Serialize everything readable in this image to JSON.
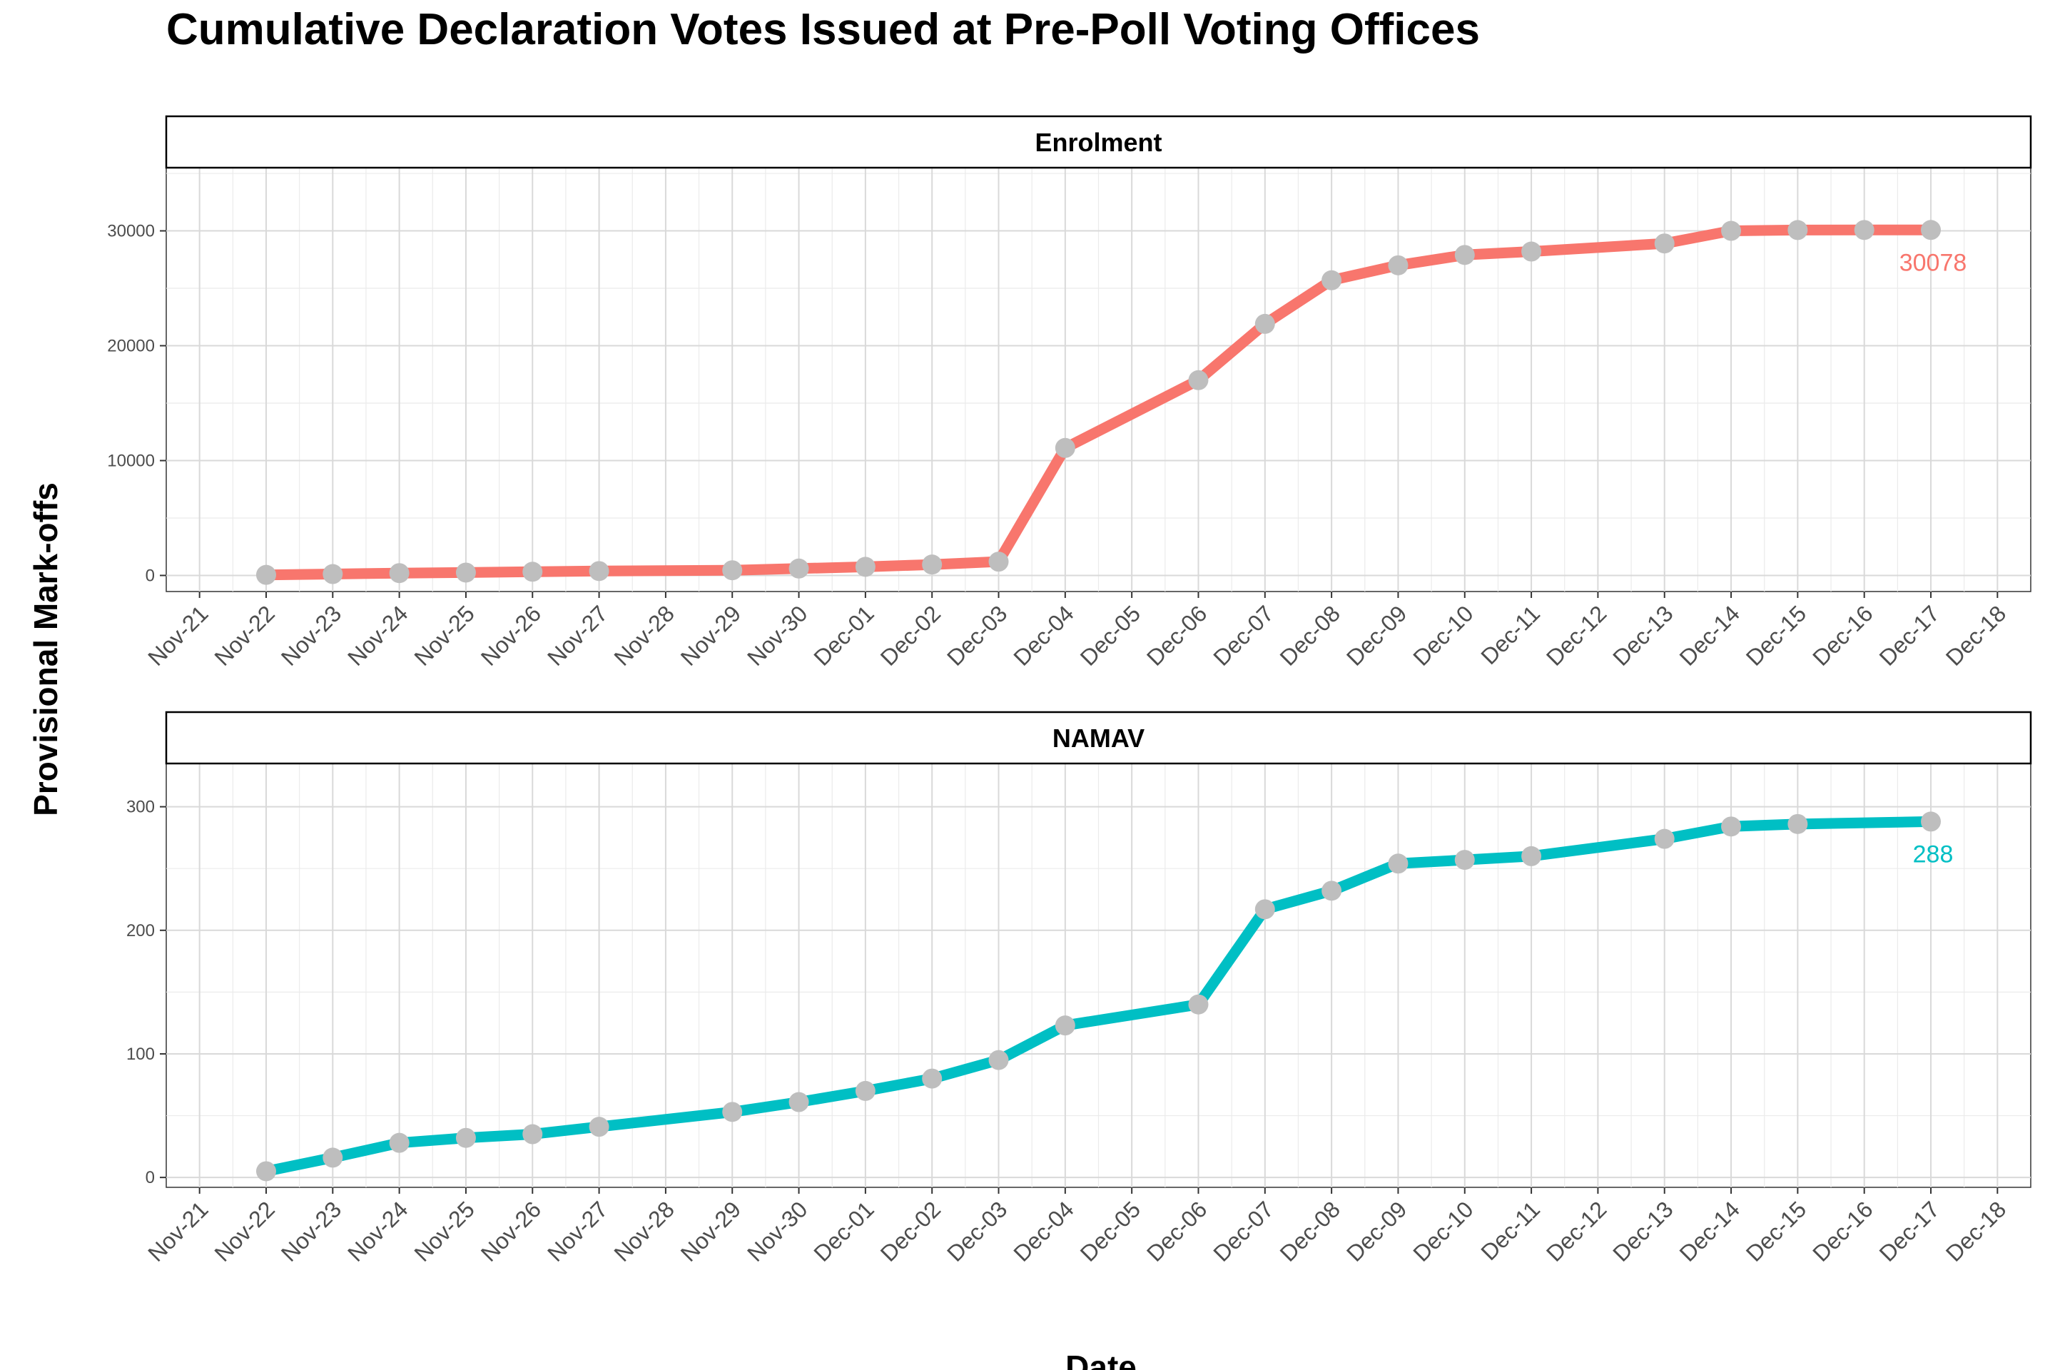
{
  "chart_data": {
    "type": "line",
    "title": "Cumulative Declaration Votes Issued at Pre-Poll Voting Offices",
    "xlabel": "Date",
    "ylabel": "Provisional Mark-offs",
    "x_tick_labels": [
      "Nov-21",
      "Nov-22",
      "Nov-23",
      "Nov-24",
      "Nov-25",
      "Nov-26",
      "Nov-27",
      "Nov-28",
      "Nov-29",
      "Nov-30",
      "Dec-01",
      "Dec-02",
      "Dec-03",
      "Dec-04",
      "Dec-05",
      "Dec-06",
      "Dec-07",
      "Dec-08",
      "Dec-09",
      "Dec-10",
      "Dec-11",
      "Dec-12",
      "Dec-13",
      "Dec-14",
      "Dec-15",
      "Dec-16",
      "Dec-17",
      "Dec-18"
    ],
    "grid": true,
    "legend": "none",
    "point_color": "#bebebe",
    "panels": [
      {
        "name": "Enrolment",
        "color": "#f8766d",
        "ylim": [
          -1400,
          35500
        ],
        "y_ticks": [
          0,
          10000,
          20000,
          30000
        ],
        "end_label": "30078",
        "x": [
          "Nov-22",
          "Nov-23",
          "Nov-24",
          "Nov-25",
          "Nov-26",
          "Nov-27",
          "Nov-29",
          "Nov-30",
          "Dec-01",
          "Dec-02",
          "Dec-03",
          "Dec-04",
          "Dec-06",
          "Dec-07",
          "Dec-08",
          "Dec-09",
          "Dec-10",
          "Dec-11",
          "Dec-13",
          "Dec-14",
          "Dec-15",
          "Dec-16",
          "Dec-17"
        ],
        "values": [
          50,
          120,
          200,
          250,
          320,
          380,
          450,
          600,
          750,
          950,
          1200,
          11100,
          17000,
          21900,
          25700,
          27000,
          27900,
          28200,
          28900,
          30000,
          30070,
          30075,
          30078
        ]
      },
      {
        "name": "NAMAV",
        "color": "#00bfc4",
        "ylim": [
          -8,
          335
        ],
        "y_ticks": [
          0,
          100,
          200,
          300
        ],
        "end_label": "288",
        "x": [
          "Nov-22",
          "Nov-23",
          "Nov-24",
          "Nov-25",
          "Nov-26",
          "Nov-27",
          "Nov-29",
          "Nov-30",
          "Dec-01",
          "Dec-02",
          "Dec-03",
          "Dec-04",
          "Dec-06",
          "Dec-07",
          "Dec-08",
          "Dec-09",
          "Dec-10",
          "Dec-11",
          "Dec-13",
          "Dec-14",
          "Dec-15",
          "Dec-17"
        ],
        "values": [
          5,
          16,
          28,
          32,
          35,
          41,
          53,
          61,
          70,
          80,
          95,
          123,
          140,
          217,
          232,
          254,
          257,
          260,
          274,
          284,
          286,
          288
        ]
      }
    ]
  }
}
